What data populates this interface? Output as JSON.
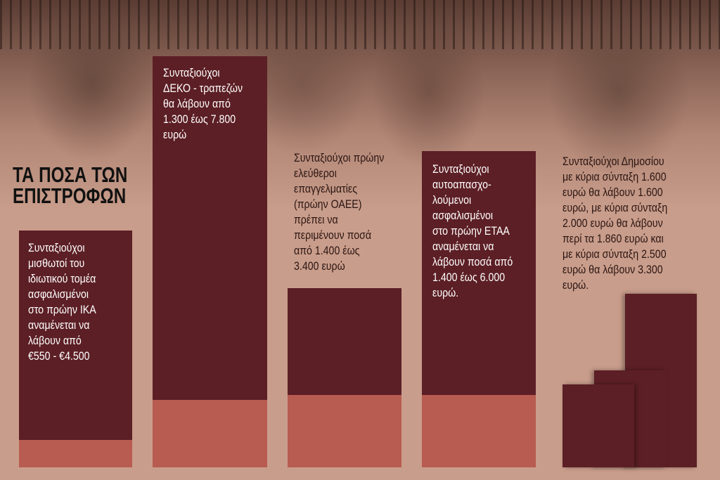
{
  "title": {
    "lines": [
      "ΤΑ ΠΟΣΑ ΤΩΝ",
      "ΕΠΙΣΤΡΟΦΩΝ"
    ]
  },
  "panels": [
    {
      "lines": [
        "Συνταξιούχοι",
        "μισθωτοί του",
        "ιδιωτικού τομέα",
        "ασφαλισμένοι",
        "στο πρώην ΙΚΑ",
        "αναμένεται να",
        "λάβουν από",
        "€550 - €4.500"
      ]
    },
    {
      "lines": [
        "Συνταξιούχοι",
        "ΔΕΚΟ - τραπεζών",
        "θα λάβουν από",
        "1.300 έως 7.800",
        "ευρώ"
      ]
    },
    {
      "lines": [
        "Συνταξιούχοι πρώην",
        "ελεύθεροι",
        "επαγγελματίες",
        "(πρώην ΟΑΕΕ)",
        "πρέπει να",
        "περιμένουν ποσά",
        "από 1.400 έως",
        "3.400 ευρώ"
      ]
    },
    {
      "lines": [
        "Συνταξιούχοι",
        "αυτοαπασχο-",
        "λούμενοι",
        "ασφαλισμένοι",
        "στο πρώην ΕΤΑΑ",
        "αναμένεται να",
        "λάβουν ποσά από",
        "1.400 έως 6.000",
        "ευρώ."
      ]
    },
    {
      "lines": [
        "Συνταξιούχοι Δημοσίου",
        "με κύρια σύνταξη 1.600",
        "ευρώ θα λάβουν 1.600",
        "ευρώ, με κύρια σύνταξη",
        "2.000 ευρώ θα λάβουν",
        "περί τα 1.860 ευρώ και",
        "με κύρια σύνταξη 2.500",
        "ευρώ θα λάβουν 3.300",
        "ευρώ."
      ]
    }
  ]
}
